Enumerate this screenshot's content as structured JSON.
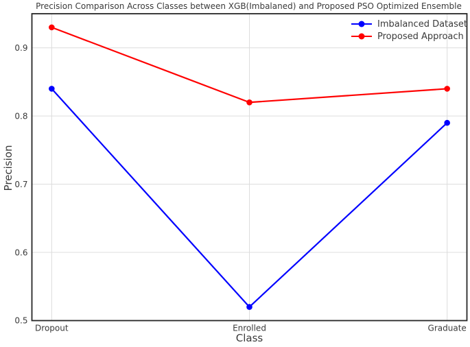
{
  "chart_data": {
    "type": "line",
    "title": "Precision Comparison Across Classes between XGB(Imbalaned) and Proposed PSO Optimized Ensemble",
    "xlabel": "Class",
    "ylabel": "Precision",
    "categories": [
      "Dropout",
      "Enrolled",
      "Graduate"
    ],
    "series": [
      {
        "name": "Imbalanced Dataset",
        "color": "#0000ff",
        "marker": "circle",
        "values": [
          0.84,
          0.52,
          0.79
        ]
      },
      {
        "name": "Proposed Approach",
        "color": "#ff0000",
        "marker": "circle",
        "values": [
          0.93,
          0.82,
          0.84
        ]
      }
    ],
    "ylim": [
      0.5,
      0.95
    ],
    "yticks": [
      0.5,
      0.6,
      0.7,
      0.8,
      0.9
    ],
    "grid": true,
    "legend_position": "upper right",
    "style": {
      "grid_color": "#dcdcdc",
      "spine_color": "#262626",
      "text_color": "#3a3a3a",
      "background": "#ffffff"
    }
  }
}
